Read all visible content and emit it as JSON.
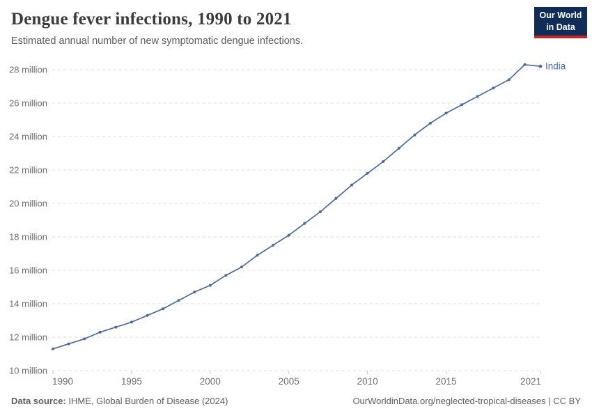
{
  "header": {
    "title": "Dengue fever infections, 1990 to 2021",
    "subtitle": "Estimated annual number of new symptomatic dengue infections.",
    "logo": {
      "line1": "Our World",
      "line2": "in Data"
    }
  },
  "chart_data": {
    "type": "line",
    "title": "Dengue fever infections, 1990 to 2021",
    "subtitle": "Estimated annual number of new symptomatic dengue infections.",
    "x": [
      1990,
      1991,
      1992,
      1993,
      1994,
      1995,
      1996,
      1997,
      1998,
      1999,
      2000,
      2001,
      2002,
      2003,
      2004,
      2005,
      2006,
      2007,
      2008,
      2009,
      2010,
      2011,
      2012,
      2013,
      2014,
      2015,
      2016,
      2017,
      2018,
      2019,
      2020,
      2021
    ],
    "series": [
      {
        "name": "India",
        "color": "#4c6a9c",
        "unit": "million",
        "values": [
          11.3,
          11.6,
          11.9,
          12.3,
          12.6,
          12.9,
          13.3,
          13.7,
          14.2,
          14.7,
          15.1,
          15.7,
          16.2,
          16.9,
          17.5,
          18.1,
          18.8,
          19.5,
          20.3,
          21.1,
          21.8,
          22.5,
          23.3,
          24.1,
          24.8,
          25.4,
          25.9,
          26.4,
          26.9,
          27.4,
          28.3,
          28.2
        ]
      }
    ],
    "xlabel": "",
    "ylabel": "",
    "ylim": [
      10,
      28
    ],
    "y_ticks": [
      {
        "value": 10,
        "label": "10 million"
      },
      {
        "value": 12,
        "label": "12 million"
      },
      {
        "value": 14,
        "label": "14 million"
      },
      {
        "value": 16,
        "label": "16 million"
      },
      {
        "value": 18,
        "label": "18 million"
      },
      {
        "value": 20,
        "label": "20 million"
      },
      {
        "value": 22,
        "label": "22 million"
      },
      {
        "value": 24,
        "label": "24 million"
      },
      {
        "value": 26,
        "label": "26 million"
      },
      {
        "value": 28,
        "label": "28 million"
      }
    ],
    "x_tick_labels": [
      1990,
      1995,
      2000,
      2005,
      2010,
      2015,
      2021
    ],
    "grid": "dashed-horizontal",
    "legend": "end-of-line-label",
    "end_label": "India"
  },
  "footer": {
    "source_label": "Data source:",
    "source_text": " IHME, Global Burden of Disease (2024)",
    "right_text": "OurWorldinData.org/neglected-tropical-diseases | CC BY"
  },
  "colors": {
    "line": "#4c6a9c",
    "grid": "#dcdcdc",
    "tick": "#c8c8c8",
    "axis_text": "#6e6e6e",
    "title_text": "#3b3b3b",
    "subtitle_text": "#5b5b5b",
    "footer_text": "#5e5e5e",
    "logo_bg": "#102d59",
    "logo_stripe": "#c52724"
  }
}
